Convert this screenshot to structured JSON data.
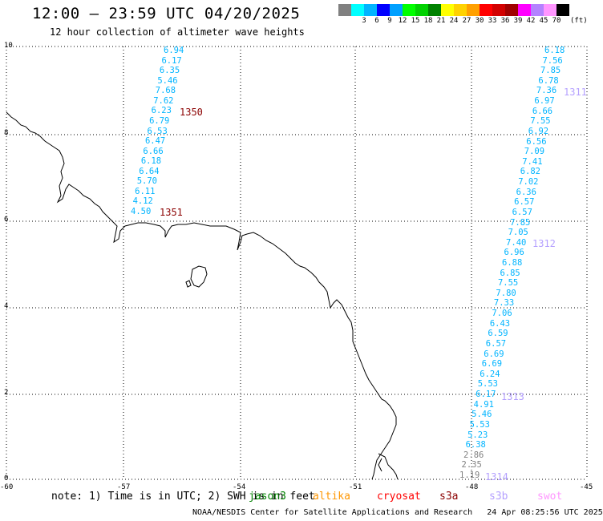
{
  "header": {
    "title": "12:00 – 23:59 UTC 04/20/2025",
    "subtitle": "12 hour collection of altimeter wave heights"
  },
  "colorbar": {
    "swatches": [
      "#808080",
      "#00ffff",
      "#00b4ff",
      "#0000ff",
      "#00a0ff",
      "#00ff00",
      "#00d200",
      "#008200",
      "#ffff00",
      "#ffd200",
      "#ffa000",
      "#ff0000",
      "#d20000",
      "#a00000",
      "#ff00ff",
      "#b482ff",
      "#ff96ff",
      "#000000"
    ],
    "labels": [
      "",
      "3",
      "6",
      "9",
      "12",
      "15",
      "18",
      "21",
      "24",
      "27",
      "30",
      "33",
      "36",
      "39",
      "42",
      "45",
      "70",
      ""
    ],
    "unit": "(ft)"
  },
  "axes": {
    "x_ticks": [
      "-60",
      "-57",
      "-54",
      "-51",
      "-48",
      "-45"
    ],
    "y_ticks": [
      "10",
      "8",
      "6",
      "4",
      "2",
      "0"
    ]
  },
  "passes": {
    "p1350": {
      "id": "1350",
      "color": "#8b0000"
    },
    "p1351": {
      "id": "1351",
      "color": "#8b0000"
    },
    "p1311": {
      "id": "1311",
      "color": "#b4a0ff"
    },
    "p1312": {
      "id": "1312",
      "color": "#b4a0ff"
    },
    "p1313": {
      "id": "1313",
      "color": "#b4a0ff"
    },
    "p1314": {
      "id": "1314",
      "color": "#b4a0ff"
    }
  },
  "wave_colors": {
    "cyan": "#00b4ff",
    "cyan_light": "#00c8e6",
    "gray": "#808080"
  },
  "track_1350_1351": [
    "6.94",
    "6.17",
    "6.35",
    "5.46",
    "7.68",
    "7.62",
    "6.23",
    "6.79",
    "6.53",
    "6.47",
    "6.66",
    "6.18",
    "6.64",
    "5.70",
    "6.11",
    "4.12",
    "4.50"
  ],
  "track_right": [
    "6.18",
    "7.56",
    "7.85",
    "6.78",
    "7.36",
    "6.97",
    "6.66",
    "7.55",
    "6.92",
    "6.56",
    "7.09",
    "7.41",
    "6.82",
    "7.02",
    "6.36",
    "6.57",
    "6.57",
    "7.85",
    "7.05",
    "7.40",
    "6.96",
    "6.88",
    "6.85",
    "7.55",
    "7.80",
    "7.33",
    "7.06",
    "6.43",
    "6.59",
    "6.57",
    "6.69",
    "6.69",
    "6.24",
    "5.53",
    "6.17",
    "4.91",
    "5.46",
    "5.53",
    "5.23",
    "6.38",
    "2.86",
    "2.35",
    "1.19"
  ],
  "footer": {
    "note": "note: 1) Time is in UTC; 2) SWH is in feet",
    "satellites": [
      {
        "name": "jason3",
        "color": "#008200"
      },
      {
        "name": "altika",
        "color": "#ff9600"
      },
      {
        "name": "cryosat",
        "color": "#ff0000"
      },
      {
        "name": "s3a",
        "color": "#8b0000"
      },
      {
        "name": "s3b",
        "color": "#b4a0ff"
      },
      {
        "name": "swot",
        "color": "#ff96ff"
      }
    ],
    "credit": "NOAA/NESDIS Center for Satellite Applications and Research",
    "timestamp": "24 Apr 08:25:56 UTC 2025"
  }
}
